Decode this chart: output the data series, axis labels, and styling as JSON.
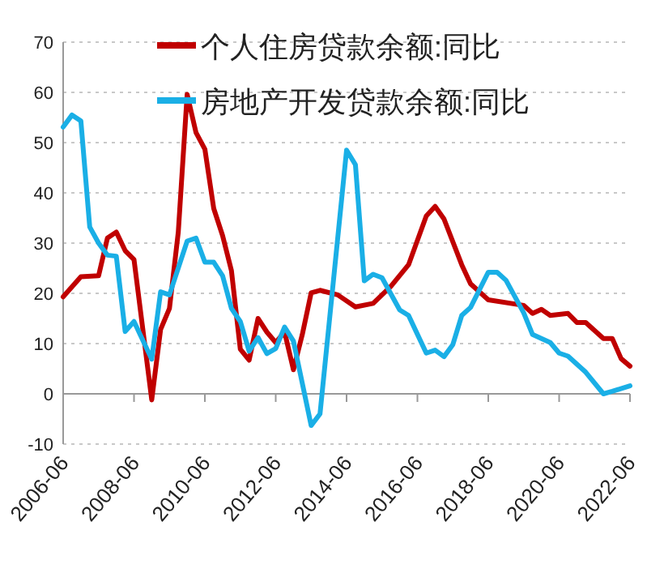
{
  "chart_data": {
    "type": "line",
    "xlim": [
      "2006-06",
      "2022-06"
    ],
    "xticks": [
      "2006-06",
      "2008-06",
      "2010-06",
      "2012-06",
      "2014-06",
      "2016-06",
      "2018-06",
      "2020-06",
      "2022-06"
    ],
    "ylim": [
      -10,
      70
    ],
    "yticks": [
      -10,
      0,
      10,
      20,
      30,
      40,
      50,
      60,
      70
    ],
    "grid": "y",
    "legend": "top",
    "line_style": "solid",
    "marker": "none",
    "series": [
      {
        "name": "个人住房贷款余额:同比",
        "color": "#c00000",
        "x": [
          "2006-06",
          "2006-12",
          "2007-06",
          "2007-09",
          "2007-12",
          "2008-03",
          "2008-06",
          "2008-12",
          "2009-03",
          "2009-06",
          "2009-09",
          "2009-12",
          "2010-03",
          "2010-06",
          "2010-09",
          "2010-12",
          "2011-03",
          "2011-06",
          "2011-09",
          "2011-12",
          "2012-03",
          "2012-06",
          "2012-09",
          "2012-12",
          "2013-03",
          "2013-06",
          "2013-09",
          "2014-03",
          "2014-09",
          "2015-03",
          "2015-09",
          "2016-03",
          "2016-09",
          "2016-12",
          "2017-03",
          "2017-09",
          "2017-12",
          "2018-06",
          "2019-06",
          "2019-09",
          "2019-12",
          "2020-03",
          "2020-09",
          "2020-12",
          "2021-03",
          "2021-09",
          "2021-12",
          "2022-03",
          "2022-06"
        ],
        "values": [
          19.3,
          23.3,
          23.5,
          31,
          32.2,
          28.5,
          26.7,
          -1.2,
          12.8,
          17,
          32.2,
          59.6,
          52,
          48.7,
          36.9,
          31.5,
          24.5,
          8.9,
          6.7,
          15,
          12.3,
          10.2,
          12.3,
          4.8,
          11.8,
          20.1,
          20.6,
          19.7,
          17.3,
          18,
          21.4,
          25.7,
          35.4,
          37.3,
          34.8,
          25.7,
          21.9,
          18.7,
          17.6,
          16,
          16.8,
          15.6,
          16,
          14.2,
          14.2,
          11,
          11,
          7,
          5.5
        ]
      },
      {
        "name": "房地产开发贷款余额:同比",
        "color": "#1aafe6",
        "x": [
          "2006-06",
          "2006-09",
          "2006-12",
          "2007-03",
          "2007-06",
          "2007-09",
          "2007-12",
          "2008-03",
          "2008-06",
          "2008-12",
          "2009-03",
          "2009-06",
          "2009-12",
          "2010-03",
          "2010-06",
          "2010-09",
          "2010-12",
          "2011-03",
          "2011-06",
          "2011-09",
          "2011-12",
          "2012-03",
          "2012-06",
          "2012-09",
          "2012-12",
          "2013-06",
          "2013-09",
          "2014-06",
          "2014-09",
          "2014-12",
          "2015-03",
          "2015-06",
          "2015-12",
          "2016-03",
          "2016-09",
          "2016-12",
          "2017-03",
          "2017-06",
          "2017-09",
          "2017-12",
          "2018-06",
          "2018-09",
          "2018-12",
          "2019-06",
          "2019-09",
          "2020-03",
          "2020-06",
          "2020-09",
          "2021-03",
          "2021-09",
          "2021-12",
          "2022-06"
        ],
        "values": [
          53.1,
          55.5,
          54.3,
          33.2,
          30,
          27.6,
          27.4,
          12.4,
          14.4,
          6.9,
          20.3,
          19.7,
          30.4,
          31,
          26.2,
          26.2,
          23.5,
          17,
          14.4,
          8.5,
          11.2,
          8,
          9,
          13.3,
          10.5,
          -6.3,
          -4,
          48.5,
          45.6,
          22.5,
          23.8,
          23.1,
          16.7,
          15.6,
          8.1,
          8.7,
          7.4,
          9.8,
          15.6,
          17.2,
          24.2,
          24.2,
          22.6,
          16.1,
          11.8,
          10.2,
          8.1,
          7.5,
          4.3,
          0,
          0.5,
          1.6
        ]
      }
    ]
  }
}
